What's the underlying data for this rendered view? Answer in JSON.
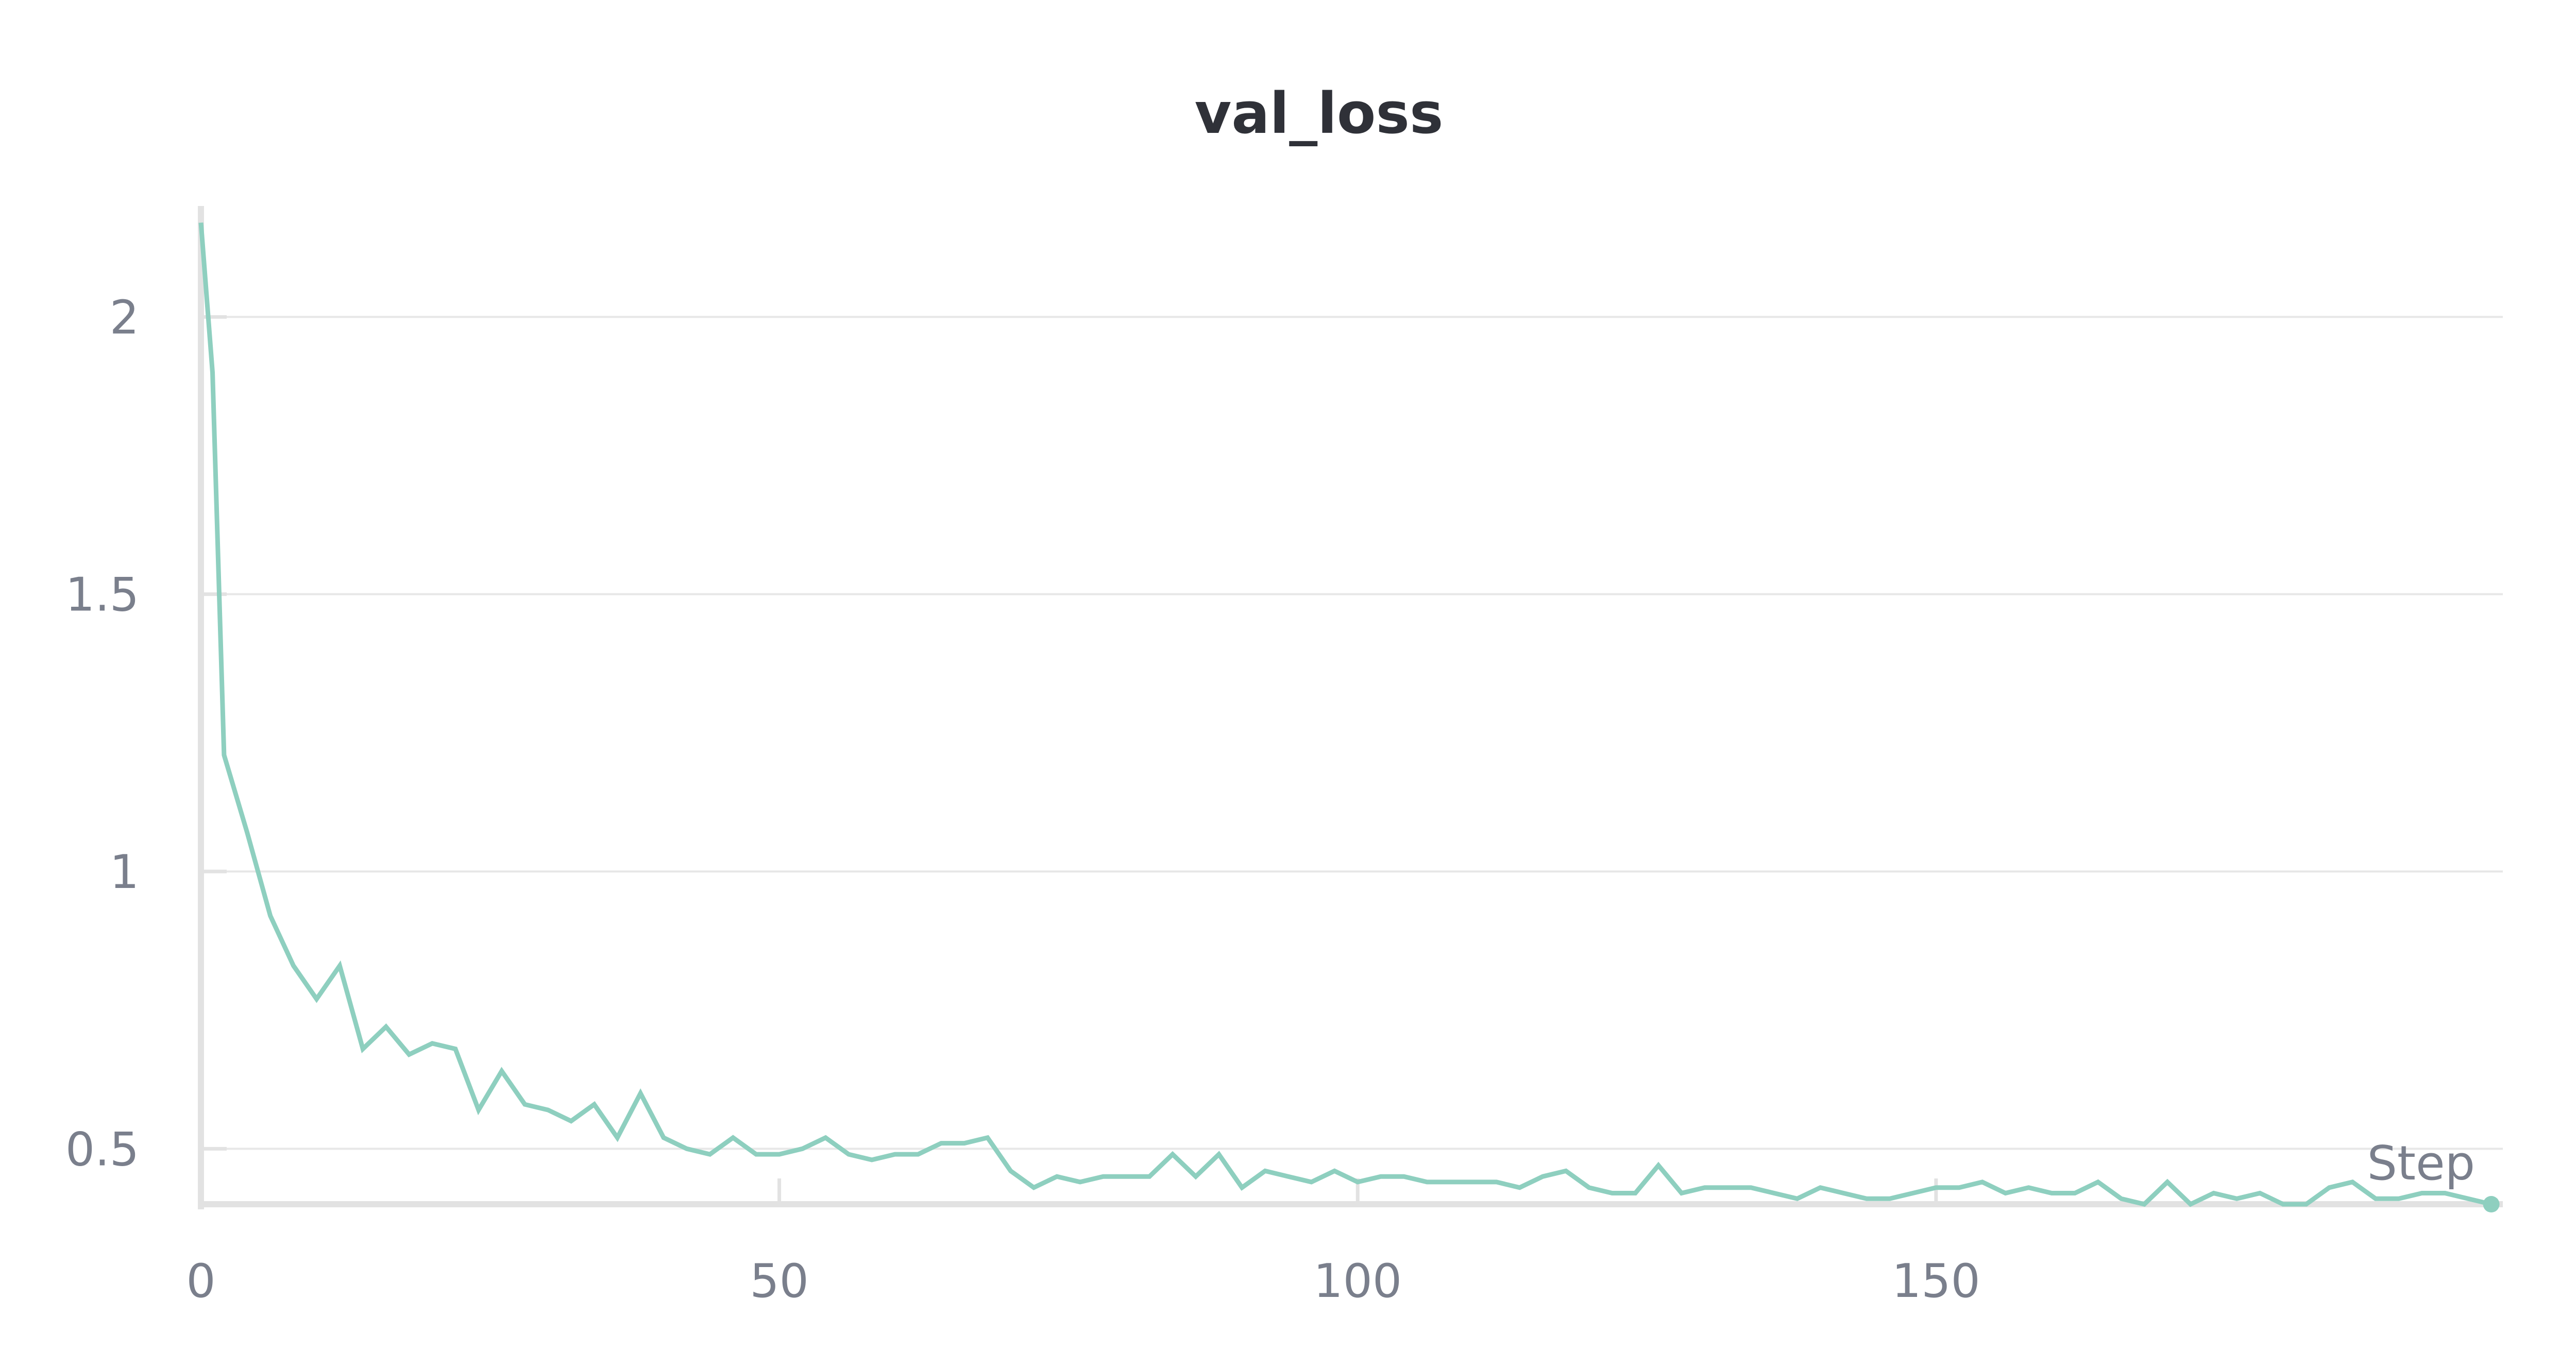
{
  "chart_data": {
    "type": "line",
    "title": "val_loss",
    "xlabel": "Step",
    "ylabel": "",
    "xlim": [
      0,
      199
    ],
    "ylim": [
      0.4,
      2.2
    ],
    "xticks": [
      0,
      50,
      100,
      150
    ],
    "xtick_labels": [
      "0",
      "50",
      "100",
      "150"
    ],
    "yticks": [
      0.5,
      1,
      1.5,
      2
    ],
    "ytick_labels": [
      "0.5",
      "1",
      "1.5",
      "2"
    ],
    "grid": true,
    "legend": "none",
    "colors": {
      "line": "#8ecfbf",
      "grid": "#e7e7e7",
      "axis": "#e2e2e2",
      "text": "#7a7f8c",
      "title": "#2f3138"
    },
    "series": [
      {
        "x": [
          0,
          1,
          2,
          4,
          6,
          8,
          10,
          12,
          14,
          16,
          18,
          20,
          22,
          24,
          26,
          28,
          30,
          32,
          34,
          36,
          38,
          40,
          42,
          44,
          46,
          48,
          50,
          52,
          54,
          56,
          58,
          60,
          62,
          64,
          66,
          68,
          70,
          72,
          74,
          76,
          78,
          80,
          82,
          84,
          86,
          88,
          90,
          92,
          94,
          96,
          98,
          100,
          102,
          104,
          106,
          108,
          110,
          112,
          114,
          116,
          118,
          120,
          122,
          124,
          126,
          128,
          130,
          132,
          134,
          136,
          138,
          140,
          142,
          144,
          146,
          148,
          150,
          152,
          154,
          156,
          158,
          160,
          162,
          164,
          166,
          168,
          170,
          172,
          174,
          176,
          178,
          180,
          182,
          184,
          186,
          188,
          190,
          192,
          194,
          196,
          198
        ],
        "values": [
          2.17,
          1.9,
          1.21,
          1.07,
          0.92,
          0.83,
          0.77,
          0.83,
          0.68,
          0.72,
          0.67,
          0.69,
          0.68,
          0.57,
          0.64,
          0.58,
          0.57,
          0.55,
          0.58,
          0.52,
          0.6,
          0.52,
          0.5,
          0.49,
          0.52,
          0.49,
          0.49,
          0.5,
          0.52,
          0.49,
          0.48,
          0.49,
          0.49,
          0.51,
          0.51,
          0.52,
          0.46,
          0.43,
          0.45,
          0.44,
          0.45,
          0.45,
          0.45,
          0.49,
          0.45,
          0.49,
          0.43,
          0.46,
          0.45,
          0.44,
          0.46,
          0.44,
          0.45,
          0.45,
          0.44,
          0.44,
          0.44,
          0.44,
          0.43,
          0.45,
          0.46,
          0.43,
          0.42,
          0.42,
          0.47,
          0.42,
          0.43,
          0.43,
          0.43,
          0.42,
          0.41,
          0.43,
          0.42,
          0.41,
          0.41,
          0.42,
          0.43,
          0.43,
          0.44,
          0.42,
          0.43,
          0.42,
          0.42,
          0.44,
          0.41,
          0.4,
          0.44,
          0.4,
          0.42,
          0.41,
          0.42,
          0.4,
          0.4,
          0.43,
          0.44,
          0.41,
          0.41,
          0.42,
          0.42,
          0.41,
          0.4
        ]
      }
    ]
  }
}
